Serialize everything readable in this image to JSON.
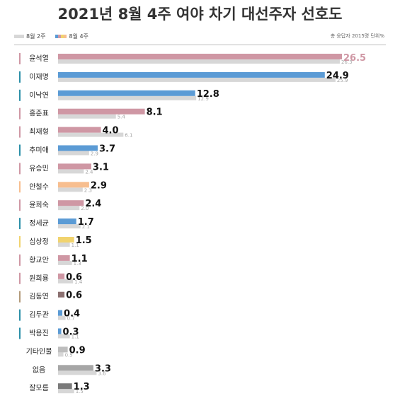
{
  "chart_data": {
    "type": "bar",
    "title": "2021년 8월 4주 여야 차기 대선주자 선호도",
    "legend": {
      "prev_label": "8월 2주",
      "cur_label": "8월 4주",
      "position": "top-left"
    },
    "note": "총 응답자 2015명   단위%",
    "xlim": [
      0,
      26.5
    ],
    "categories": [
      "윤석열",
      "이재명",
      "이낙연",
      "홍준표",
      "최재형",
      "추미애",
      "유승민",
      "안철수",
      "윤희숙",
      "정세균",
      "심상정",
      "황교안",
      "원희룡",
      "김동연",
      "김두관",
      "박용진",
      "기타인물",
      "없음",
      "잘모름"
    ],
    "series": [
      {
        "name": "8월 4주",
        "values": [
          26.5,
          24.9,
          12.8,
          8.1,
          4.0,
          3.7,
          3.1,
          2.9,
          2.4,
          1.7,
          1.5,
          1.1,
          0.6,
          0.6,
          0.4,
          0.3,
          0.9,
          3.3,
          1.3
        ]
      },
      {
        "name": "8월 2주",
        "values": [
          26.3,
          25.9,
          12.9,
          5.4,
          6.1,
          2.9,
          2.4,
          2.3,
          2.0,
          2.1,
          1.1,
          1.3,
          1.4,
          null,
          0.7,
          1.1,
          0.5,
          3.6,
          1.5
        ]
      }
    ],
    "labels_cur": [
      "26.5",
      "24.9",
      "12.8",
      "8.1",
      "4.0",
      "3.7",
      "3.1",
      "2.9",
      "2.4",
      "1.7",
      "1.5",
      "1.1",
      "0.6",
      "0.6",
      "0.4",
      "0.3",
      "0.9",
      "3.3",
      "1.3"
    ],
    "labels_prev": [
      "26.3",
      "25.9",
      "12.9",
      "5.4",
      "6.1",
      "2.9",
      "2.4",
      "2.3",
      "2.0",
      "2.1",
      "1.1",
      "1.3",
      "1.4",
      "",
      "0.7",
      "1.1",
      "0.5",
      "3.6",
      "1.5"
    ],
    "colors": {
      "cur": [
        "#cf97a4",
        "#5b9bd5",
        "#5b9bd5",
        "#cf97a4",
        "#cf97a4",
        "#5b9bd5",
        "#cf97a4",
        "#f7be8f",
        "#cf97a4",
        "#5b9bd5",
        "#f1d36e",
        "#cf97a4",
        "#cf97a4",
        "#8b7070",
        "#5b9bd5",
        "#5b9bd5",
        "#bdbdbd",
        "#a6a6a6",
        "#7a7a7a"
      ],
      "marker": [
        "#cf97a4",
        "#2b8fa8",
        "#2b8fa8",
        "#cf97a4",
        "#cf97a4",
        "#2b8fa8",
        "#cf97a4",
        "#f7be8f",
        "#cf97a4",
        "#2b8fa8",
        "#f1d36e",
        "#cf97a4",
        "#cf97a4",
        "#b39a7a",
        "#2b8fa8",
        "#2b8fa8",
        null,
        null,
        null
      ],
      "prev": "#d7d7d7",
      "highlight_value": "#cf97a4",
      "legend_cur": [
        "#5b9bd5",
        "#cf97a4",
        "#f1d36e",
        "#f7be8f"
      ]
    }
  }
}
